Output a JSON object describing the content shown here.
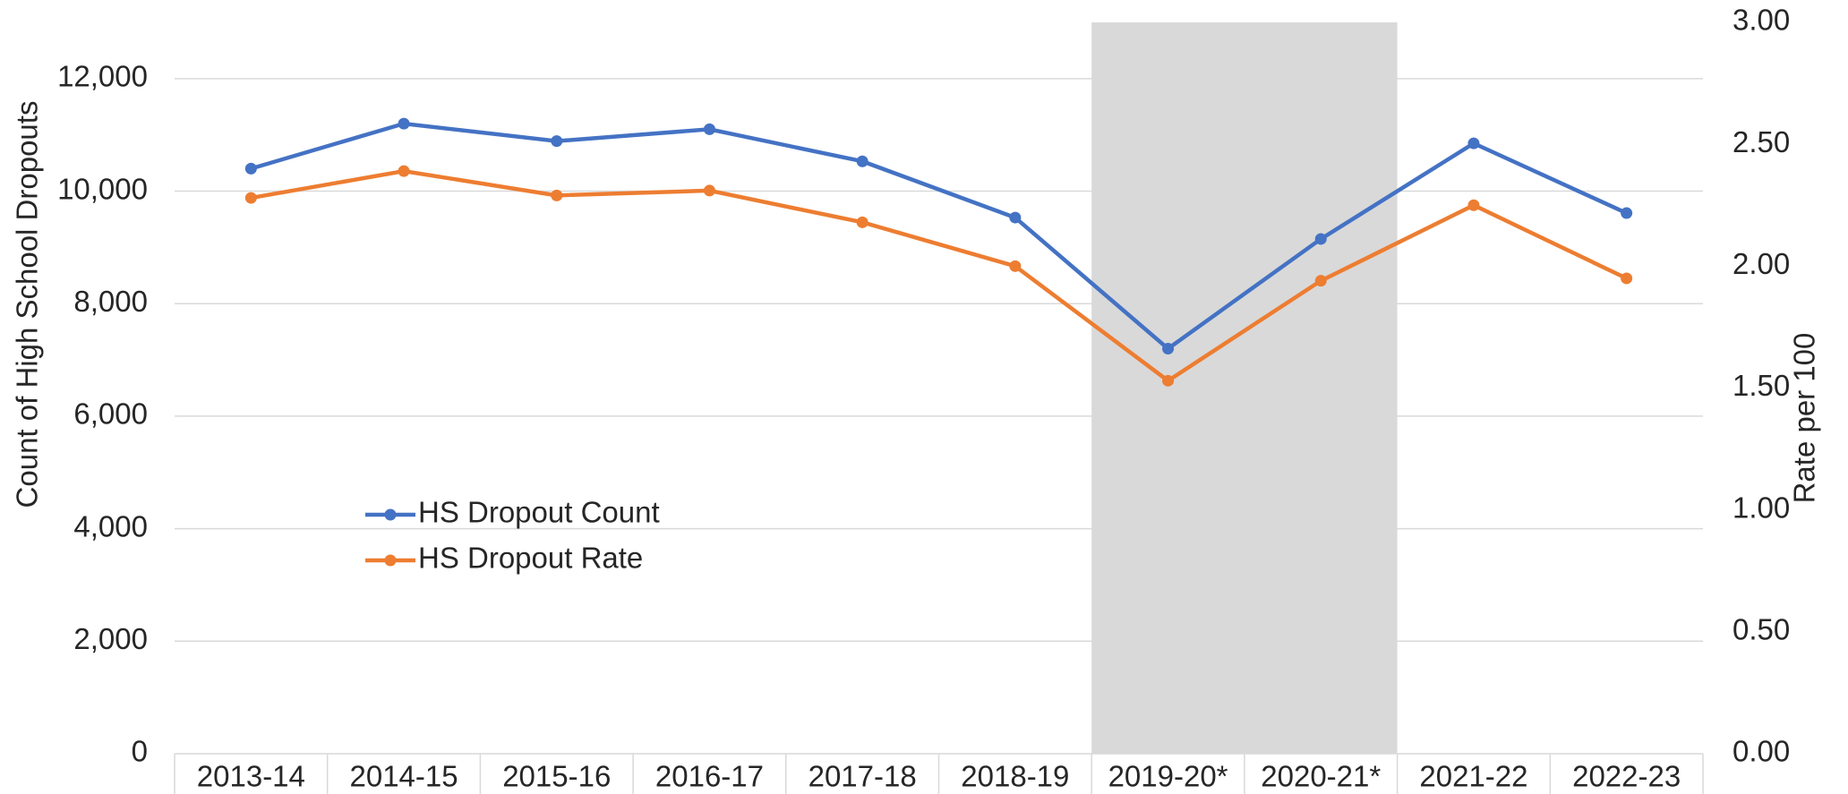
{
  "chart_data": {
    "type": "line",
    "categories": [
      "2013-14",
      "2014-15",
      "2015-16",
      "2016-17",
      "2017-18",
      "2018-19",
      "2019-20*",
      "2020-21*",
      "2021-22",
      "2022-23"
    ],
    "series": [
      {
        "name": "HS Dropout Count",
        "color": "#4472c4",
        "values": [
          10400,
          11200,
          10890,
          11100,
          10530,
          9530,
          7200,
          9150,
          10850,
          9610
        ]
      },
      {
        "name": "HS Dropout Rate",
        "color": "#ed7d31",
        "axis": "y2",
        "values": [
          2.28,
          2.39,
          2.29,
          2.31,
          2.18,
          2.0,
          1.53,
          1.94,
          2.25,
          1.95
        ]
      }
    ],
    "y_label": "Count of High School Dropouts",
    "y2_label": "Rate per 100",
    "ylim": [
      0,
      13000
    ],
    "yticks": [
      0,
      {
        "value": 2000,
        "label": "2,000"
      },
      {
        "value": 4000,
        "label": "4,000"
      },
      {
        "value": 6000,
        "label": "6,000"
      },
      {
        "value": 8000,
        "label": "8,000"
      },
      {
        "value": 10000,
        "label": "10,000"
      },
      {
        "value": 12000,
        "label": "12,000"
      }
    ],
    "y2lim": [
      0,
      3
    ],
    "y2ticks": [
      {
        "value": 0,
        "label": "0.00"
      },
      {
        "value": 0.5,
        "label": "0.50"
      },
      {
        "value": 1,
        "label": "1.00"
      },
      {
        "value": 1.5,
        "label": "1.50"
      },
      {
        "value": 2,
        "label": "2.00"
      },
      {
        "value": 2.5,
        "label": "2.50"
      },
      {
        "value": 3,
        "label": "3.00"
      }
    ],
    "grid": true,
    "shaded_categories": [
      "2019-20*",
      "2020-21*"
    ],
    "shade_color": "#d9d9d9"
  }
}
